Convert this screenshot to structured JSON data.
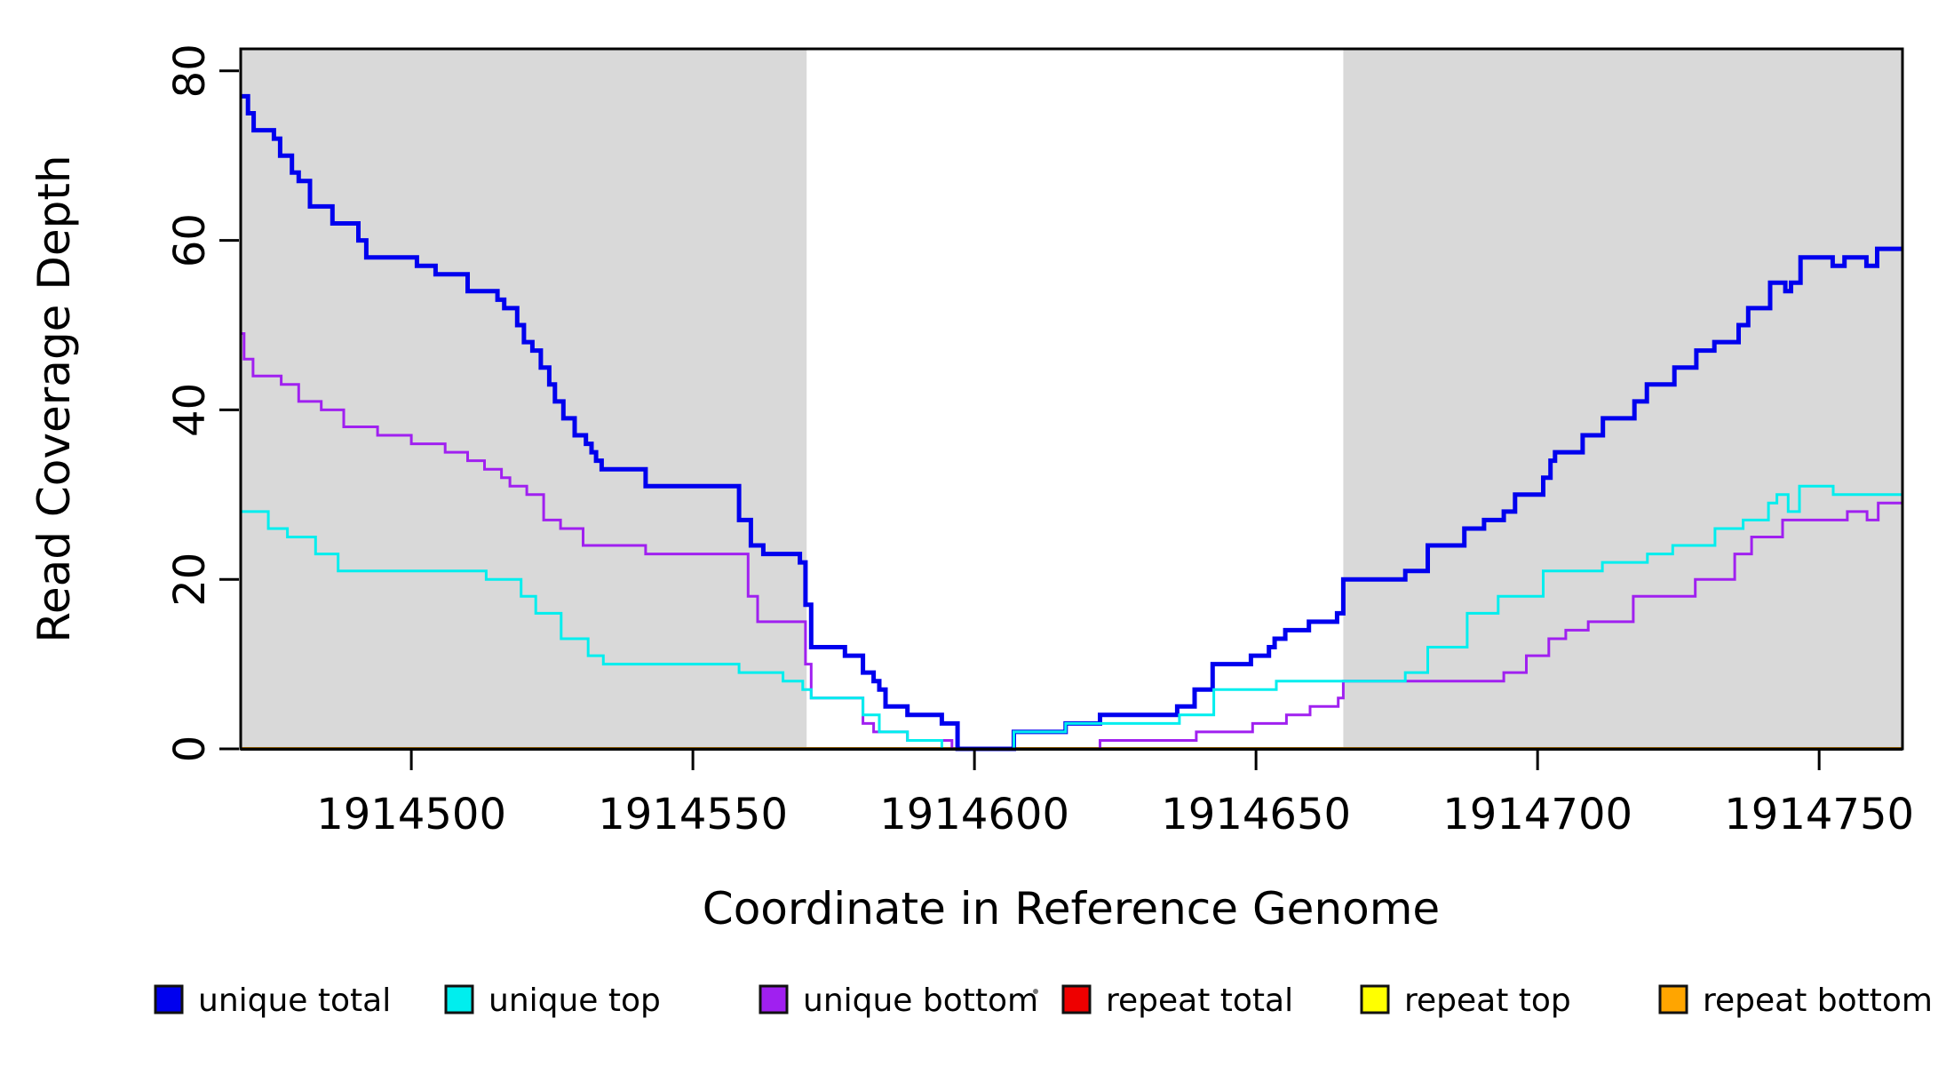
{
  "y_axis": {
    "title": "Read Coverage Depth",
    "ticks": [
      "0",
      "20",
      "40",
      "60",
      "80"
    ]
  },
  "x_axis": {
    "title": "Coordinate in Reference Genome",
    "ticks": [
      "1914500",
      "1914550",
      "1914600",
      "1914650",
      "1914700",
      "1914750"
    ]
  },
  "legend": {
    "items": [
      {
        "label": "unique total",
        "color": "#0000EE"
      },
      {
        "label": "unique top",
        "color": "#00EEEE"
      },
      {
        "label": "unique bottom",
        "color": "#A020F0"
      },
      {
        "label": "repeat total",
        "color": "#EE0000"
      },
      {
        "label": "repeat top",
        "color": "#FFFF00"
      },
      {
        "label": "repeat bottom",
        "color": "#FFA500"
      }
    ]
  },
  "chart_data": {
    "type": "line",
    "subtype": "step-after",
    "title": "",
    "xlabel": "Coordinate in Reference Genome",
    "ylabel": "Read Coverage Depth",
    "x_range": [
      1914469.7,
      1914764.8
    ],
    "y_range": [
      0,
      82.6
    ],
    "x_tick_values": [
      1914500,
      1914550,
      1914600,
      1914650,
      1914700,
      1914750
    ],
    "y_tick_values": [
      0,
      20,
      40,
      60,
      80
    ],
    "grid": "off",
    "legend_position": "bottom",
    "background_color": "#ffffff",
    "shaded_regions": [
      {
        "x0": 1914469.7,
        "x1": 1914570.2,
        "color": "#D9D9D9",
        "meaning": "repeat-flank shading"
      },
      {
        "x0": 1914665.5,
        "x1": 1914764.8,
        "color": "#D9D9D9",
        "meaning": "repeat-flank shading"
      }
    ],
    "series": [
      {
        "name": "repeat total",
        "color": "#EE0000",
        "width": 3,
        "points": [
          [
            1914469.7,
            0
          ]
        ]
      },
      {
        "name": "repeat top",
        "color": "#FFFF00",
        "width": 3,
        "points": [
          [
            1914469.7,
            0
          ]
        ]
      },
      {
        "name": "repeat bottom",
        "color": "#FFA500",
        "width": 4,
        "points": [
          [
            1914469.7,
            0
          ]
        ]
      },
      {
        "name": "unique total",
        "color": "#0000EE",
        "width": 5,
        "points": [
          [
            1914469.7,
            77
          ],
          [
            1914471,
            75
          ],
          [
            1914472,
            73
          ],
          [
            1914475.6,
            72
          ],
          [
            1914476.7,
            70
          ],
          [
            1914478.8,
            68
          ],
          [
            1914480,
            67
          ],
          [
            1914482,
            64
          ],
          [
            1914486,
            62
          ],
          [
            1914490.6,
            60
          ],
          [
            1914492,
            58
          ],
          [
            1914501,
            57
          ],
          [
            1914504.3,
            56
          ],
          [
            1914510,
            54
          ],
          [
            1914515.3,
            53
          ],
          [
            1914516.5,
            52
          ],
          [
            1914518.8,
            50
          ],
          [
            1914520,
            48
          ],
          [
            1914521.5,
            47
          ],
          [
            1914523,
            45
          ],
          [
            1914524.5,
            43
          ],
          [
            1914525.5,
            41
          ],
          [
            1914527,
            39
          ],
          [
            1914529,
            37
          ],
          [
            1914531,
            36
          ],
          [
            1914532,
            35
          ],
          [
            1914532.8,
            34
          ],
          [
            1914533.8,
            33
          ],
          [
            1914541.6,
            31
          ],
          [
            1914558.2,
            27
          ],
          [
            1914560.3,
            24
          ],
          [
            1914562.5,
            23
          ],
          [
            1914569,
            22
          ],
          [
            1914570,
            17
          ],
          [
            1914571,
            12
          ],
          [
            1914577,
            11
          ],
          [
            1914580.2,
            9
          ],
          [
            1914582.1,
            8
          ],
          [
            1914583.1,
            7
          ],
          [
            1914584.2,
            5
          ],
          [
            1914588.1,
            4
          ],
          [
            1914594.2,
            3
          ],
          [
            1914597,
            0
          ],
          [
            1914607,
            2
          ],
          [
            1914616.2,
            3
          ],
          [
            1914622.3,
            4
          ],
          [
            1914636,
            5
          ],
          [
            1914639.1,
            7
          ],
          [
            1914642.3,
            10
          ],
          [
            1914649.1,
            11
          ],
          [
            1914652.3,
            12
          ],
          [
            1914653.3,
            13
          ],
          [
            1914655.2,
            14
          ],
          [
            1914659.4,
            15
          ],
          [
            1914664.4,
            16
          ],
          [
            1914665.5,
            20
          ],
          [
            1914676.5,
            21
          ],
          [
            1914680.5,
            24
          ],
          [
            1914687,
            26
          ],
          [
            1914690.5,
            27
          ],
          [
            1914694,
            28
          ],
          [
            1914696,
            30
          ],
          [
            1914701,
            32
          ],
          [
            1914702.3,
            34
          ],
          [
            1914703.1,
            35
          ],
          [
            1914708,
            37
          ],
          [
            1914711.6,
            39
          ],
          [
            1914717.2,
            41
          ],
          [
            1914719.4,
            43
          ],
          [
            1914724.3,
            45
          ],
          [
            1914728.2,
            47
          ],
          [
            1914731.4,
            48
          ],
          [
            1914735.7,
            50
          ],
          [
            1914737.4,
            52
          ],
          [
            1914741.3,
            55
          ],
          [
            1914744,
            54
          ],
          [
            1914745,
            55
          ],
          [
            1914746.7,
            58
          ],
          [
            1914752.4,
            57
          ],
          [
            1914754.5,
            58
          ],
          [
            1914758.4,
            57
          ],
          [
            1914760.3,
            59
          ]
        ]
      },
      {
        "name": "unique bottom",
        "color": "#A020F0",
        "width": 3,
        "points": [
          [
            1914469.7,
            49
          ],
          [
            1914470.3,
            46
          ],
          [
            1914471.9,
            44
          ],
          [
            1914476.9,
            43
          ],
          [
            1914480,
            41
          ],
          [
            1914484,
            40
          ],
          [
            1914488,
            38
          ],
          [
            1914494,
            37
          ],
          [
            1914500,
            36
          ],
          [
            1914506,
            35
          ],
          [
            1914510,
            34
          ],
          [
            1914513,
            33
          ],
          [
            1914516,
            32
          ],
          [
            1914517.5,
            31
          ],
          [
            1914520.5,
            30
          ],
          [
            1914523.5,
            27
          ],
          [
            1914526.5,
            26
          ],
          [
            1914530.5,
            24
          ],
          [
            1914541.6,
            23
          ],
          [
            1914559.8,
            18
          ],
          [
            1914561.5,
            15
          ],
          [
            1914570,
            10
          ],
          [
            1914571,
            6
          ],
          [
            1914580.2,
            3
          ],
          [
            1914582.1,
            2
          ],
          [
            1914588.1,
            1
          ],
          [
            1914596,
            0
          ],
          [
            1914622.3,
            1
          ],
          [
            1914639.4,
            2
          ],
          [
            1914649.4,
            3
          ],
          [
            1914655.4,
            4
          ],
          [
            1914659.6,
            5
          ],
          [
            1914664.6,
            6
          ],
          [
            1914665.5,
            8
          ],
          [
            1914694,
            9
          ],
          [
            1914698,
            11
          ],
          [
            1914702,
            13
          ],
          [
            1914705,
            14
          ],
          [
            1914709,
            15
          ],
          [
            1914717,
            18
          ],
          [
            1914728,
            20
          ],
          [
            1914735,
            23
          ],
          [
            1914738,
            25
          ],
          [
            1914743.5,
            27
          ],
          [
            1914755,
            28
          ],
          [
            1914758.5,
            27
          ],
          [
            1914760.5,
            29
          ]
        ]
      },
      {
        "name": "unique top",
        "color": "#00EEEE",
        "width": 3,
        "points": [
          [
            1914469.7,
            28
          ],
          [
            1914474.6,
            26
          ],
          [
            1914478,
            25
          ],
          [
            1914483,
            23
          ],
          [
            1914487,
            21
          ],
          [
            1914513.3,
            20
          ],
          [
            1914519.5,
            18
          ],
          [
            1914522.1,
            16
          ],
          [
            1914526.6,
            13
          ],
          [
            1914531.4,
            11
          ],
          [
            1914534.1,
            10
          ],
          [
            1914558.2,
            9
          ],
          [
            1914566,
            8
          ],
          [
            1914569.5,
            7
          ],
          [
            1914571,
            6
          ],
          [
            1914580.2,
            4
          ],
          [
            1914583.1,
            2
          ],
          [
            1914588.1,
            1
          ],
          [
            1914594.2,
            0
          ],
          [
            1914607,
            2
          ],
          [
            1914616.2,
            3
          ],
          [
            1914636.4,
            4
          ],
          [
            1914642.5,
            7
          ],
          [
            1914653.6,
            8
          ],
          [
            1914676.5,
            9
          ],
          [
            1914680.5,
            12
          ],
          [
            1914687.5,
            16
          ],
          [
            1914693,
            18
          ],
          [
            1914701,
            21
          ],
          [
            1914711.5,
            22
          ],
          [
            1914719.5,
            23
          ],
          [
            1914724,
            24
          ],
          [
            1914731.5,
            26
          ],
          [
            1914736.5,
            27
          ],
          [
            1914741,
            29
          ],
          [
            1914742.5,
            30
          ],
          [
            1914744.5,
            28
          ],
          [
            1914746.5,
            31
          ],
          [
            1914752.5,
            30
          ]
        ]
      }
    ]
  }
}
